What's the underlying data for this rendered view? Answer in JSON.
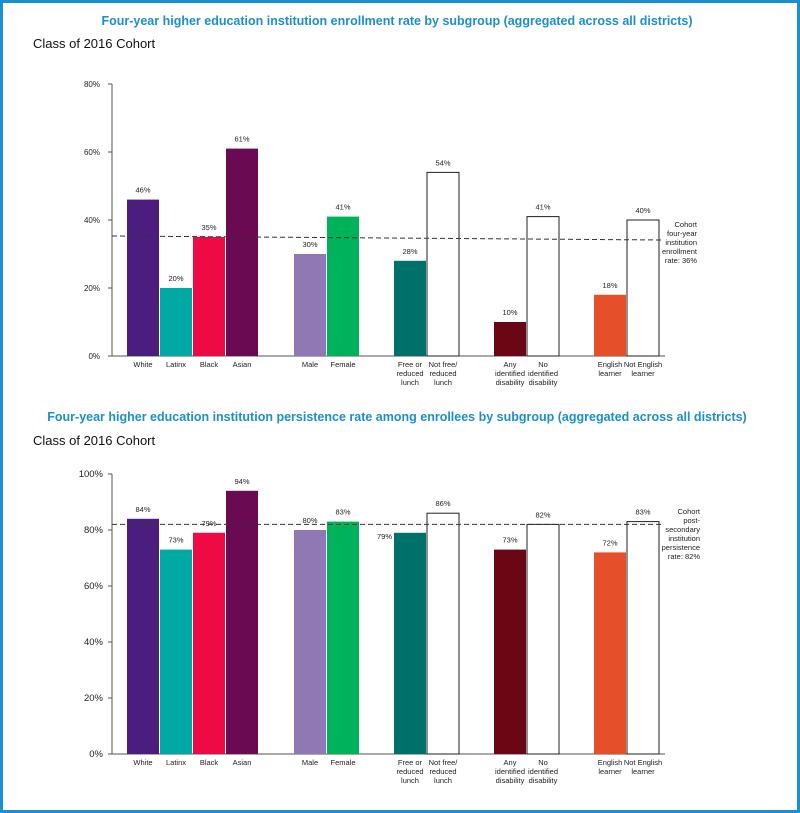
{
  "colors": {
    "frame": "#1b8fcf",
    "title": "#1b8fcf",
    "white": "#4b1d7e",
    "latinx": "#00a9a4",
    "black": "#ee0a45",
    "asian": "#6a0a52",
    "male": "#8f78b4",
    "female": "#00b35a",
    "free_lunch": "#00706b",
    "any_disability": "#6b0715",
    "english_learner": "#e5502a",
    "outline": "#ffffff"
  },
  "chart_data": [
    {
      "type": "bar",
      "title": "Four-year higher education institution enrollment rate by subgroup (aggregated across all districts)",
      "subtitle": "Class of 2016 Cohort",
      "ylim": [
        0,
        80
      ],
      "yticks": [
        0,
        20,
        40,
        60,
        80
      ],
      "ytick_labels": [
        "0%",
        "20%",
        "40%",
        "60%",
        "80%"
      ],
      "grid": false,
      "categories": [
        "White",
        "Latinx",
        "Black",
        "Asian",
        "Male",
        "Female",
        "Free or reduced lunch",
        "Not free/ reduced lunch",
        "Any identified disability",
        "No identified disability",
        "English learner",
        "Not English learner"
      ],
      "category_labels": [
        [
          "White"
        ],
        [
          "Latinx"
        ],
        [
          "Black"
        ],
        [
          "Asian"
        ],
        [
          "Male"
        ],
        [
          "Female"
        ],
        [
          "Free or",
          "reduced",
          "lunch"
        ],
        [
          "Not free/",
          "reduced",
          "lunch"
        ],
        [
          "Any",
          "identified",
          "disability"
        ],
        [
          "No",
          "identified",
          "disability"
        ],
        [
          "English",
          "learner"
        ],
        [
          "Not English",
          "learner"
        ]
      ],
      "values": [
        46,
        20,
        35,
        61,
        30,
        41,
        28,
        54,
        10,
        41,
        18,
        40
      ],
      "value_labels": [
        "46%",
        "20%",
        "35%",
        "61%",
        "30%",
        "41%",
        "28%",
        "54%",
        "10%",
        "41%",
        "18%",
        "40%"
      ],
      "bar_colors": [
        "white",
        "latinx",
        "black",
        "asian",
        "male",
        "female",
        "free_lunch",
        "outline",
        "any_disability",
        "outline",
        "english_learner",
        "outline"
      ],
      "reference_line": {
        "value": 36,
        "label": [
          "Cohort",
          "four-year",
          "institution",
          "enrollment",
          "rate: 36%"
        ]
      }
    },
    {
      "type": "bar",
      "title": "Four-year higher education institution persistence rate among enrollees by subgroup (aggregated across all districts)",
      "subtitle": "Class of 2016 Cohort",
      "ylim": [
        0,
        100
      ],
      "yticks": [
        0,
        20,
        40,
        60,
        80,
        100
      ],
      "ytick_labels": [
        "0%",
        "20%",
        "40%",
        "60%",
        "80%",
        "100%"
      ],
      "grid": false,
      "categories": [
        "White",
        "Latinx",
        "Black",
        "Asian",
        "Male",
        "Female",
        "Free or reduced lunch",
        "Not free/ reduced lunch",
        "Any identified disability",
        "No identified disability",
        "English learner",
        "Not English learner"
      ],
      "category_labels": [
        [
          "White"
        ],
        [
          "Latinx"
        ],
        [
          "Black"
        ],
        [
          "Asian"
        ],
        [
          "Male"
        ],
        [
          "Female"
        ],
        [
          "Free or",
          "reduced",
          "lunch"
        ],
        [
          "Not free/",
          "reduced",
          "lunch"
        ],
        [
          "Any",
          "identified",
          "disability"
        ],
        [
          "No",
          "identified",
          "disability"
        ],
        [
          "English",
          "learner"
        ],
        [
          "Not English",
          "learner"
        ]
      ],
      "values": [
        84,
        73,
        79,
        94,
        80,
        83,
        79,
        86,
        73,
        82,
        72,
        83
      ],
      "value_labels": [
        "84%",
        "73%",
        "79%",
        "94%",
        "80%",
        "83%",
        "79%",
        "86%",
        "73%",
        "82%",
        "72%",
        "83%"
      ],
      "bar_colors": [
        "white",
        "latinx",
        "black",
        "asian",
        "male",
        "female",
        "free_lunch",
        "outline",
        "any_disability",
        "outline",
        "english_learner",
        "outline"
      ],
      "reference_line": {
        "value": 82,
        "label": [
          "Cohort",
          "post-",
          "secondary",
          "institution",
          "persistence",
          "rate: 82%"
        ]
      }
    }
  ]
}
